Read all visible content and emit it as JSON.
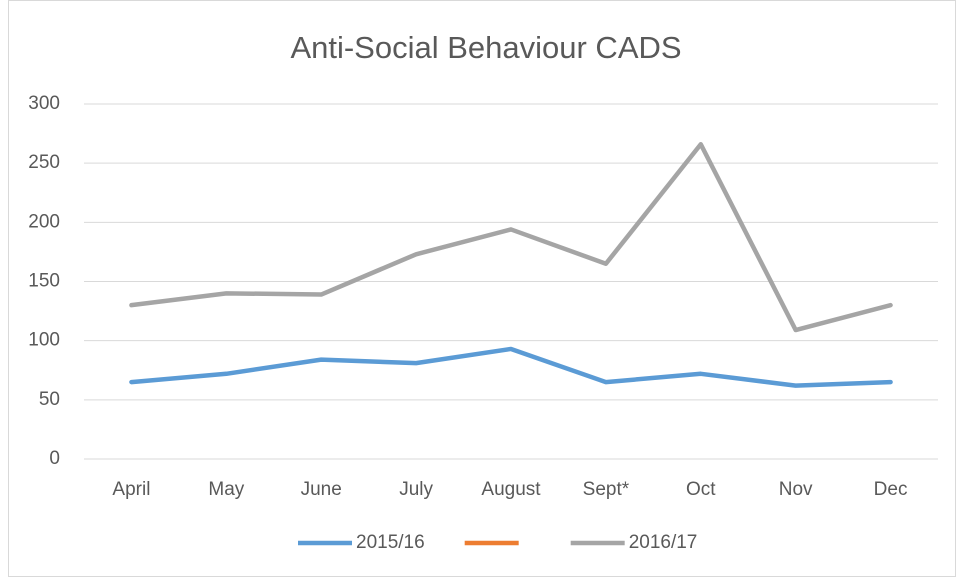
{
  "chart_data": {
    "type": "line",
    "title": "Anti-Social Behaviour CADS",
    "categories": [
      "April",
      "May",
      "June",
      "July",
      "August",
      "Sept*",
      "Oct",
      "Nov",
      "Dec"
    ],
    "series": [
      {
        "name": "2015/16",
        "color": "#5b9bd5",
        "values": [
          65,
          72,
          84,
          81,
          93,
          65,
          72,
          62,
          65
        ]
      },
      {
        "color": "#ed7d31",
        "values": [
          null,
          null,
          null,
          null,
          null,
          null,
          null,
          null,
          null
        ]
      },
      {
        "name": "2016/17",
        "color": "#a5a5a5",
        "values": [
          130,
          140,
          139,
          173,
          194,
          165,
          266,
          109,
          130
        ]
      }
    ],
    "ylim": [
      0,
      300
    ],
    "yticks": [
      0,
      50,
      100,
      150,
      200,
      250,
      300
    ],
    "grid": true,
    "legend": "bottom"
  }
}
